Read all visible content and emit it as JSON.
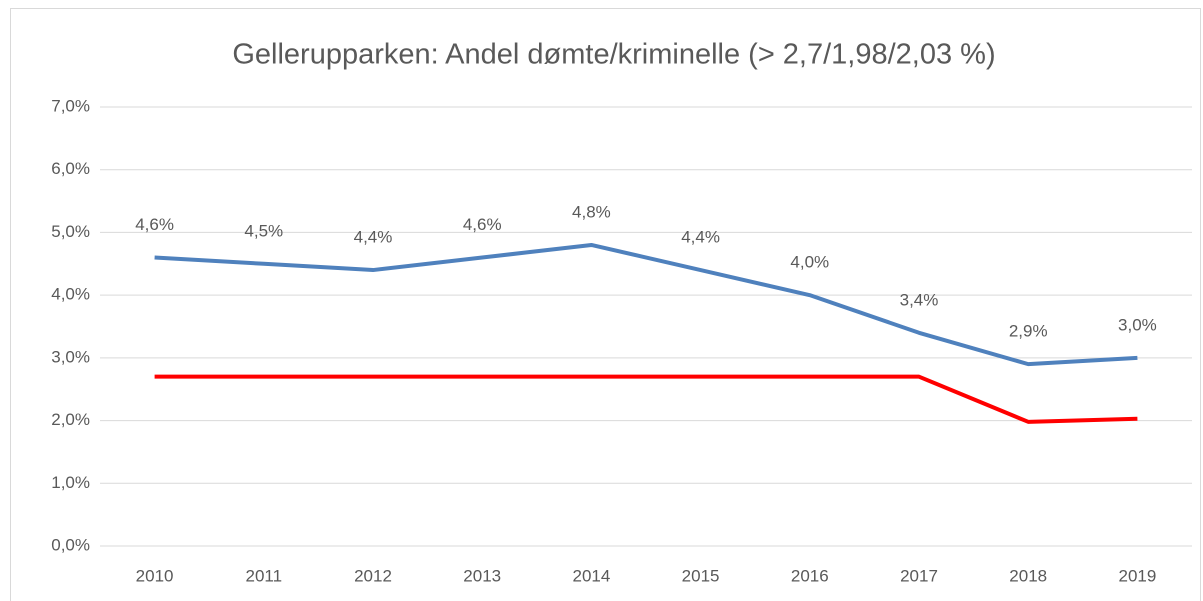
{
  "chart_data": {
    "type": "line",
    "title": "Gellerupparken: Andel dømte/kriminelle (> 2,7/1,98/2,03 %)",
    "categories": [
      "2010",
      "2011",
      "2012",
      "2013",
      "2014",
      "2015",
      "2016",
      "2017",
      "2018",
      "2019"
    ],
    "series": [
      {
        "color": "#4f81bd",
        "values": [
          4.6,
          4.5,
          4.4,
          4.6,
          4.8,
          4.4,
          4.0,
          3.4,
          2.9,
          3.0
        ],
        "value_labels": [
          "4,6%",
          "4,5%",
          "4,4%",
          "4,6%",
          "4,8%",
          "4,4%",
          "4,0%",
          "3,4%",
          "2,9%",
          "3,0%"
        ]
      },
      {
        "color": "#ff0000",
        "values": [
          2.7,
          2.7,
          2.7,
          2.7,
          2.7,
          2.7,
          2.7,
          2.7,
          1.98,
          2.03
        ]
      }
    ],
    "ylim": [
      0,
      7
    ],
    "yticks": [
      {
        "value": 0,
        "label": "0,0%"
      },
      {
        "value": 1,
        "label": "1,0%"
      },
      {
        "value": 2,
        "label": "2,0%"
      },
      {
        "value": 3,
        "label": "3,0%"
      },
      {
        "value": 4,
        "label": "4,0%"
      },
      {
        "value": 5,
        "label": "5,0%"
      },
      {
        "value": 6,
        "label": "6,0%"
      },
      {
        "value": 7,
        "label": "7,0%"
      }
    ],
    "grid": true
  }
}
